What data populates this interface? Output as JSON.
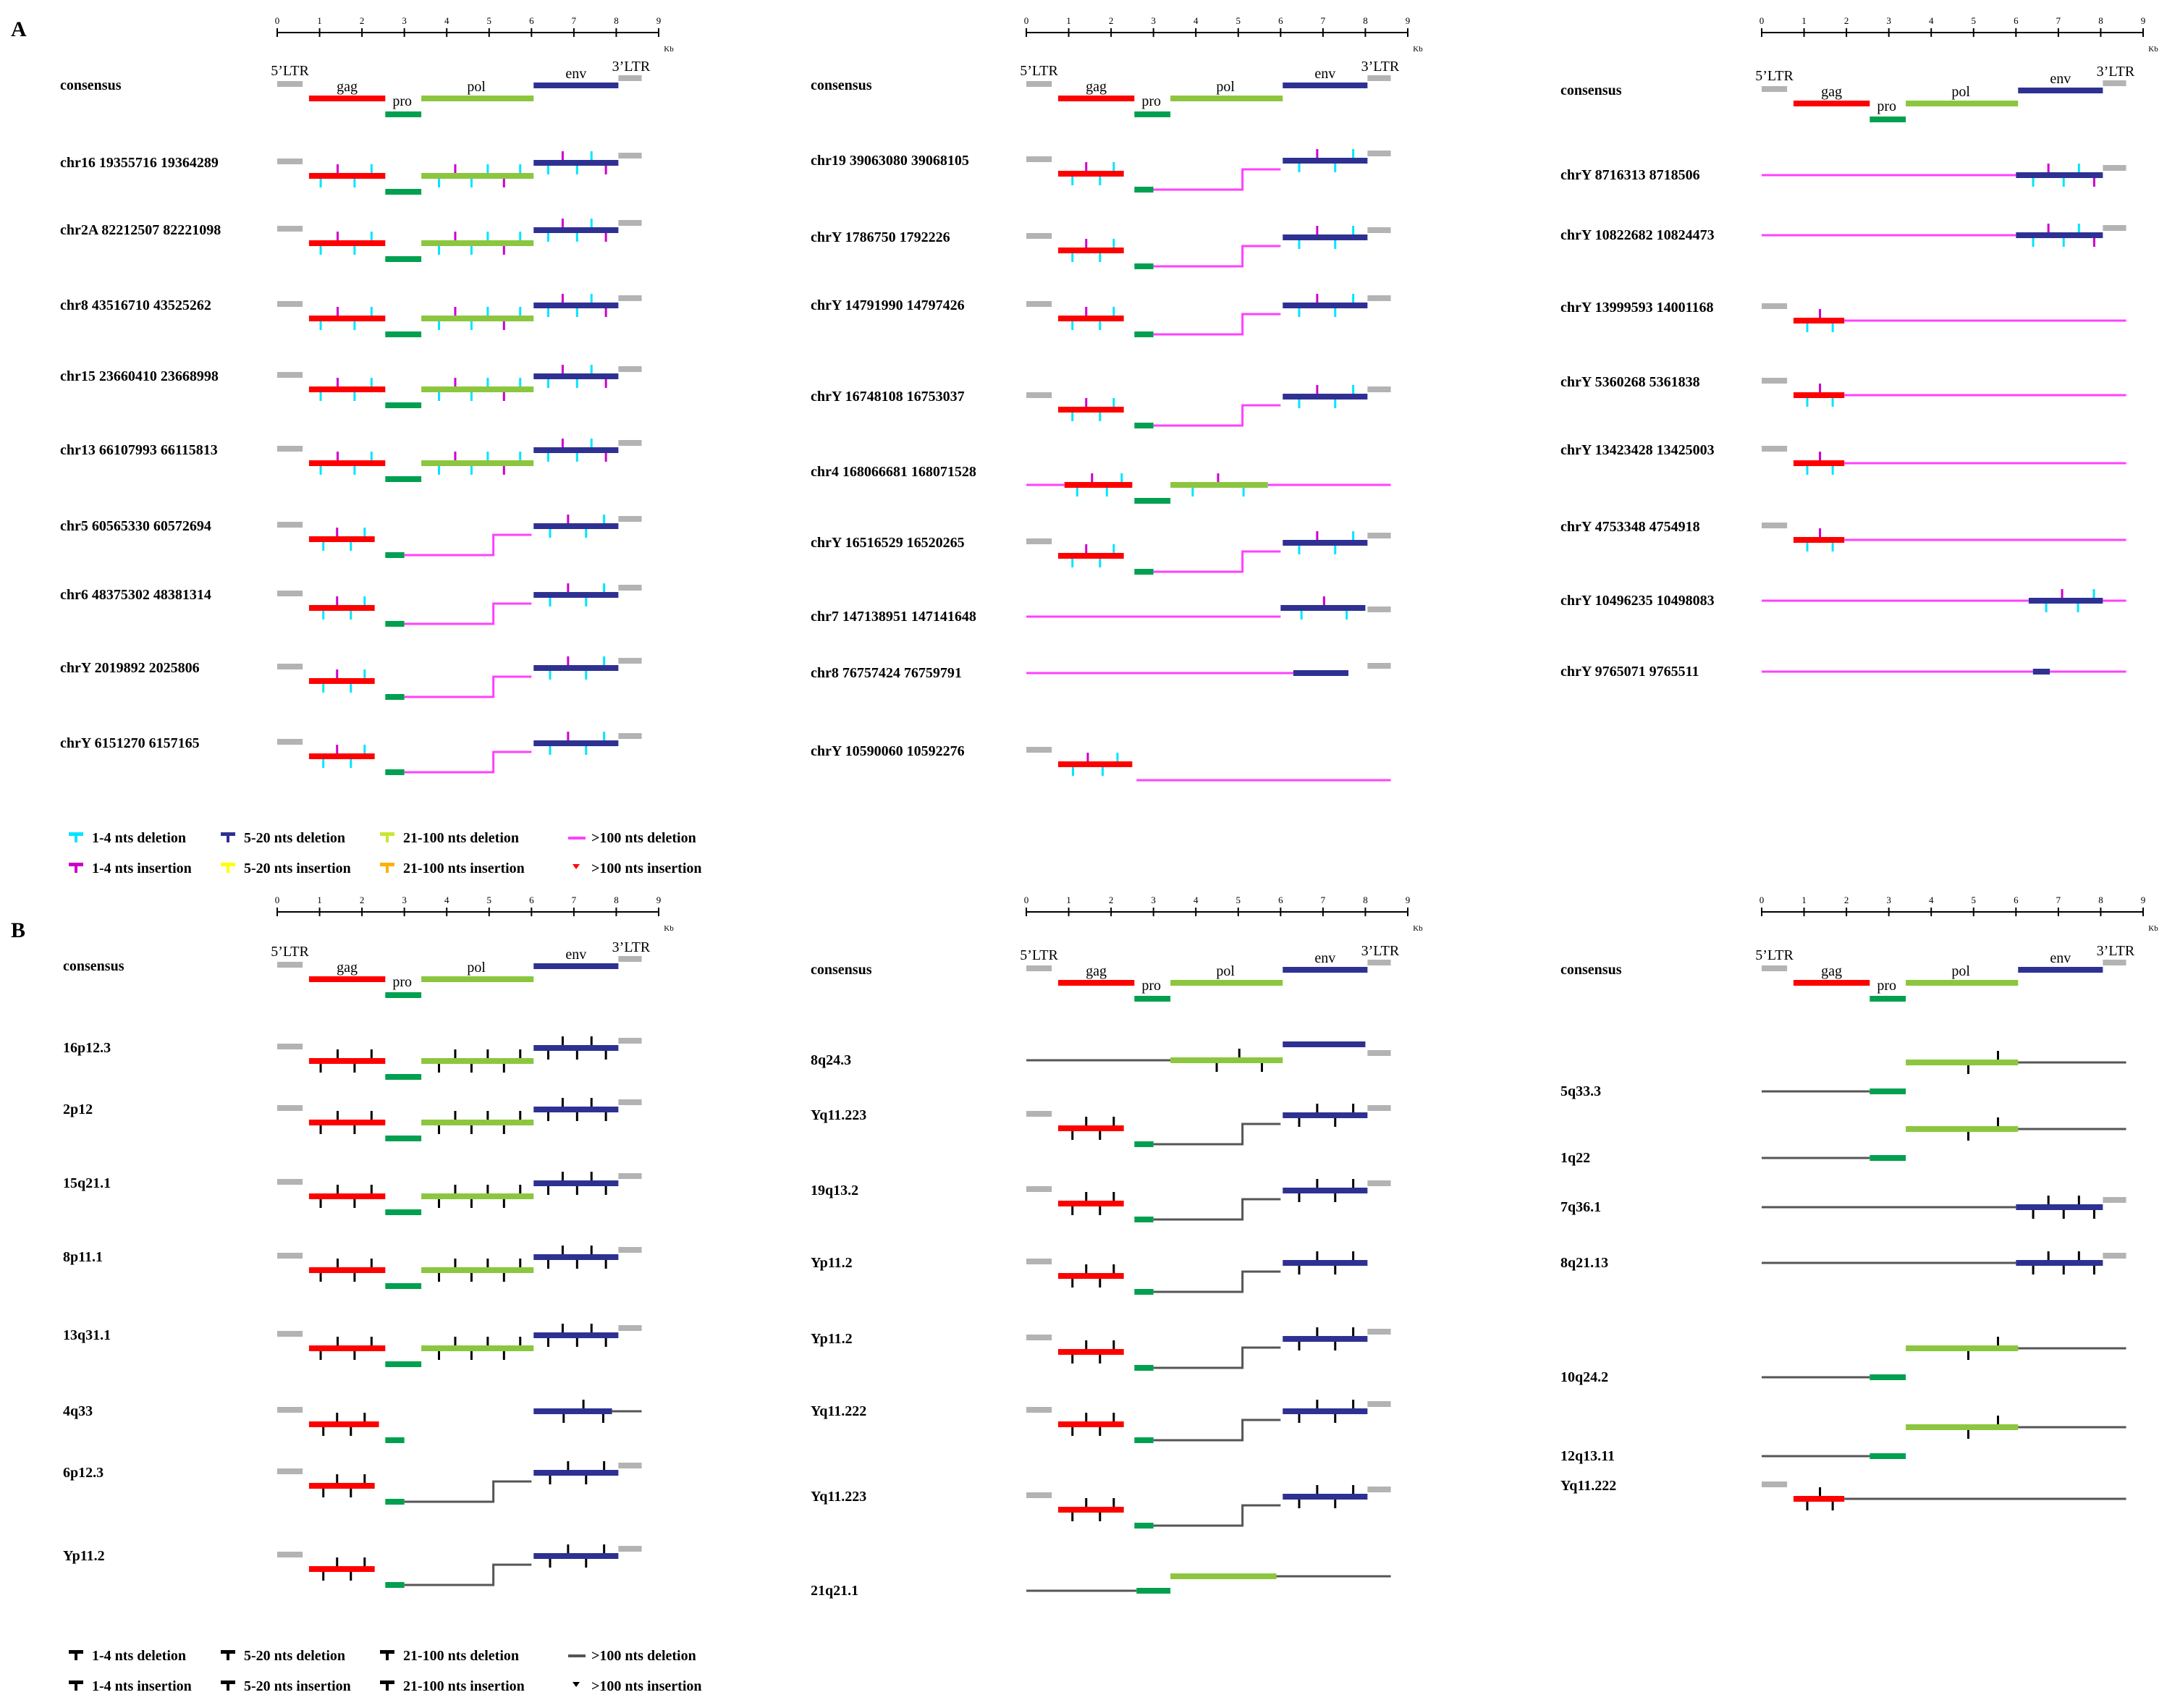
{
  "panels": [
    {
      "label": "A",
      "legend_style": "color"
    },
    {
      "label": "B",
      "legend_style": "black"
    }
  ],
  "axis": {
    "ticks": [
      "0",
      "1",
      "2",
      "3",
      "4",
      "5",
      "6",
      "7",
      "8",
      "9"
    ],
    "unit": "Kb"
  },
  "gene_labels": {
    "ltr5": "5’LTR",
    "ltr3": "3’LTR",
    "gag": "gag",
    "pro": "pro",
    "pol": "pol",
    "env": "env"
  },
  "colors": {
    "gag": "#ff0000",
    "pro": "#00a050",
    "pol": "#8cc63f",
    "env": "#2e3192",
    "ltr": "#b3b3b3",
    "deletion_line_A": "#ff40ff",
    "deletion_line_B": "#555555"
  },
  "columns": [
    {
      "panel": "A",
      "rows": [
        "consensus",
        "chr16 19355716 19364289",
        "chr2A 82212507 82221098",
        "chr8 43516710 43525262",
        "chr15 23660410 23668998",
        "chr13 66107993 66115813",
        "chr5 60565330 60572694",
        "chr6 48375302 48381314",
        "chrY 2019892 2025806",
        "chrY 6151270 6157165"
      ]
    },
    {
      "panel": "A",
      "rows": [
        "consensus",
        "chr19 39063080 39068105",
        "chrY 1786750 1792226",
        "chrY 14791990 14797426",
        "chrY 16748108 16753037",
        "chr4 168066681 168071528",
        "chrY 16516529 16520265",
        "chr7 147138951 147141648",
        "chr8 76757424 76759791",
        "chrY 10590060 10592276"
      ]
    },
    {
      "panel": "A",
      "rows": [
        "consensus",
        "chrY 8716313 8718506",
        "chrY 10822682 10824473",
        "chrY 13999593 14001168",
        "chrY 5360268 5361838",
        "chrY 13423428 13425003",
        "chrY 4753348 4754918",
        "chrY 10496235 10498083",
        "chrY 9765071 9765511"
      ]
    },
    {
      "panel": "B",
      "rows": [
        "consensus",
        "16p12.3",
        "2p12",
        "15q21.1",
        "8p11.1",
        "13q31.1",
        "4q33",
        "6p12.3",
        "Yp11.2"
      ]
    },
    {
      "panel": "B",
      "rows": [
        "consensus",
        "8q24.3",
        "Yq11.223",
        "19q13.2",
        "Yp11.2",
        "Yp11.2",
        "Yq11.222",
        "Yq11.223",
        "21q21.1"
      ]
    },
    {
      "panel": "B",
      "rows": [
        "consensus",
        "5q33.3",
        "1q22",
        "7q36.1",
        "8q21.13",
        "10q24.2",
        "12q13.11",
        "Yq11.222"
      ]
    }
  ],
  "legend": {
    "A": [
      "1-4 nts deletion",
      "5-20 nts deletion",
      "21-100 nts deletion",
      ">100 nts deletion",
      "1-4 nts insertion",
      "5-20 nts insertion",
      "21-100 nts insertion",
      ">100 nts insertion"
    ],
    "B": [
      "1-4 nts deletion",
      "5-20 nts deletion",
      "21-100 nts deletion",
      ">100 nts deletion",
      "1-4 nts insertion",
      "5-20 nts insertion",
      "21-100 nts insertion",
      ">100 nts insertion"
    ]
  }
}
